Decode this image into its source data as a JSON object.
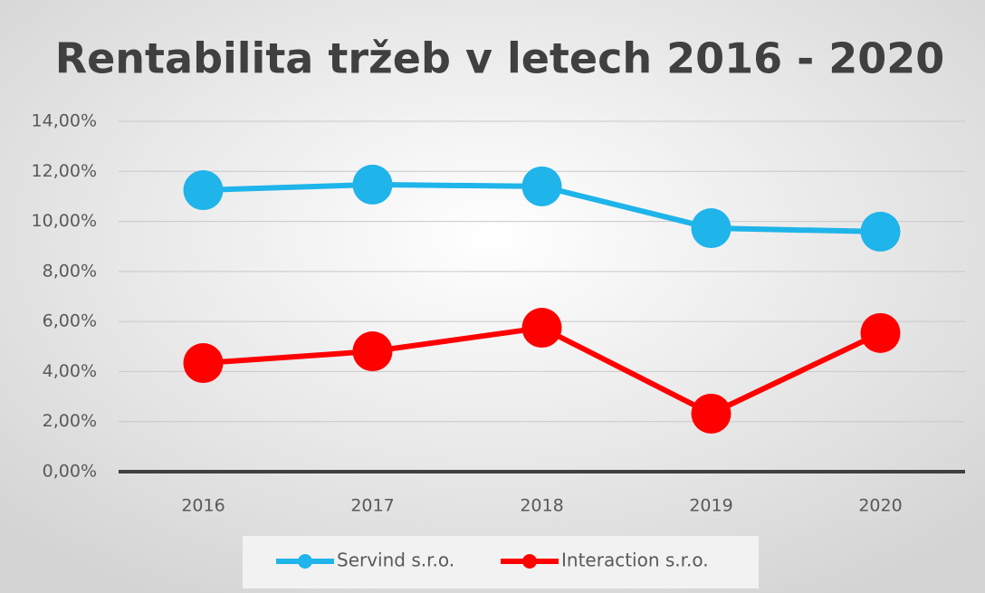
{
  "chart_data": {
    "type": "line",
    "title": "Rentabilita tržeb v letech 2016 - 2020",
    "categories": [
      "2016",
      "2017",
      "2018",
      "2019",
      "2020"
    ],
    "series": [
      {
        "name": "Servind s.r.o.",
        "color": "#1fb4ea",
        "values": [
          11.25,
          11.47,
          11.4,
          9.73,
          9.59
        ]
      },
      {
        "name": "Interaction s.r.o.",
        "color": "#ff0000",
        "values": [
          4.34,
          4.81,
          5.75,
          2.32,
          5.54
        ]
      }
    ],
    "ylim": [
      0,
      14
    ],
    "yticks": [
      {
        "value": 0,
        "label": "0,00%"
      },
      {
        "value": 2,
        "label": "2,00%"
      },
      {
        "value": 4,
        "label": "4,00%"
      },
      {
        "value": 6,
        "label": "6,00%"
      },
      {
        "value": 8,
        "label": "8,00%"
      },
      {
        "value": 10,
        "label": "10,00%"
      },
      {
        "value": 12,
        "label": "12,00%"
      },
      {
        "value": 14,
        "label": "14,00%"
      }
    ],
    "grid": true,
    "legend": "bottom"
  }
}
